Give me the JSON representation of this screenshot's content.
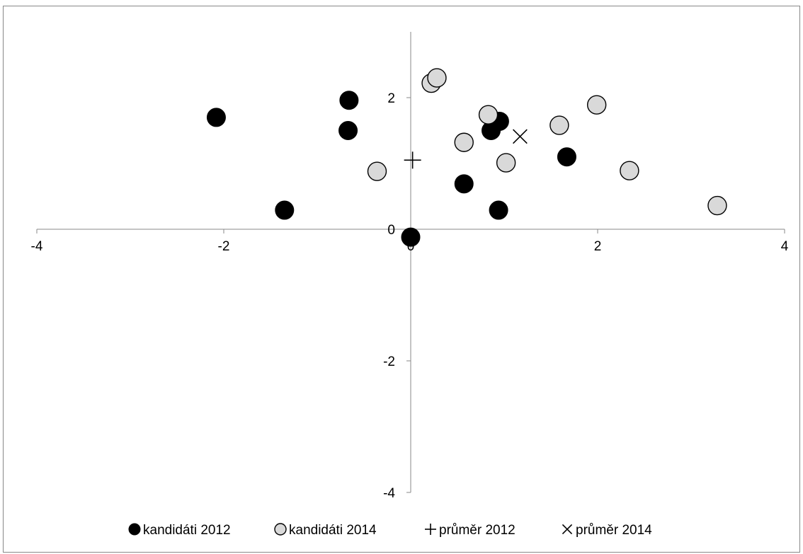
{
  "chart_data": {
    "type": "scatter",
    "title": "",
    "xlabel": "",
    "ylabel": "",
    "xlim": [
      -4,
      4
    ],
    "ylim": [
      -4,
      3
    ],
    "x_ticks": [
      -4,
      -2,
      0,
      2,
      4
    ],
    "y_ticks": [
      -4,
      -2,
      0,
      2
    ],
    "x_tick_labels": [
      "-4",
      "-2",
      "0",
      "2",
      "4"
    ],
    "y_tick_labels": [
      "-4",
      "-2",
      "0",
      "2"
    ],
    "legend_position": "bottom",
    "grid": false,
    "series": [
      {
        "name": "kandidáti 2012",
        "marker": "filled-circle",
        "color": "#000000",
        "points": [
          {
            "x": -2.08,
            "y": 1.7
          },
          {
            "x": -1.35,
            "y": 0.29
          },
          {
            "x": -0.66,
            "y": 1.96
          },
          {
            "x": -0.67,
            "y": 1.5
          },
          {
            "x": 0.0,
            "y": -0.12
          },
          {
            "x": 0.57,
            "y": 0.69
          },
          {
            "x": 0.86,
            "y": 1.5
          },
          {
            "x": 0.95,
            "y": 1.64
          },
          {
            "x": 0.94,
            "y": 0.29
          },
          {
            "x": 1.67,
            "y": 1.1
          }
        ]
      },
      {
        "name": "kandidáti 2014",
        "marker": "light-circle",
        "color": "#d9d9d9",
        "points": [
          {
            "x": -0.36,
            "y": 0.88
          },
          {
            "x": 0.22,
            "y": 2.22
          },
          {
            "x": 0.28,
            "y": 2.3
          },
          {
            "x": 0.57,
            "y": 1.32
          },
          {
            "x": 0.83,
            "y": 1.74
          },
          {
            "x": 1.02,
            "y": 1.01
          },
          {
            "x": 1.59,
            "y": 1.58
          },
          {
            "x": 1.99,
            "y": 1.89
          },
          {
            "x": 2.34,
            "y": 0.89
          },
          {
            "x": 3.28,
            "y": 0.36
          }
        ]
      },
      {
        "name": "průměr 2012",
        "marker": "plus",
        "color": "#000000",
        "points": [
          {
            "x": 0.02,
            "y": 1.05
          }
        ]
      },
      {
        "name": "průměr 2014",
        "marker": "cross",
        "color": "#000000",
        "points": [
          {
            "x": 1.17,
            "y": 1.41
          }
        ]
      }
    ]
  }
}
